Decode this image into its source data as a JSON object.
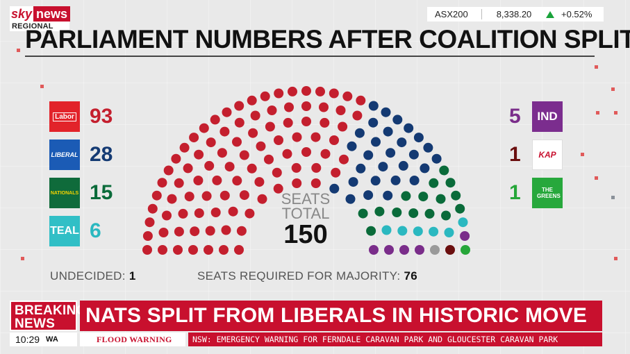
{
  "brand": {
    "sky": "sky",
    "news": "news",
    "region": "REGIONAL"
  },
  "market": {
    "name": "ASX200",
    "value": "8,338.20",
    "change": "+0.52%",
    "direction": "up",
    "up_color": "#1aa33b"
  },
  "title": "PARLIAMENT NUMBERS AFTER COALITION SPLIT",
  "parties_left": [
    {
      "logo_text": "Labor",
      "count": "93",
      "color": "#c41f2e",
      "logo_bg": "#e2232a"
    },
    {
      "logo_text": "LIBERAL",
      "count": "28",
      "color": "#143a73",
      "logo_bg": "#1b5bb5"
    },
    {
      "logo_text": "NATIONALS",
      "count": "15",
      "color": "#0a6b3a",
      "logo_bg": "#0f6b3b"
    },
    {
      "logo_text": "TEAL",
      "count": "6",
      "color": "#2bb8c0",
      "logo_bg": "#31bfc6"
    }
  ],
  "parties_right": [
    {
      "logo_text": "IND",
      "count": "5",
      "color": "#7a2d8a",
      "logo_bg": "#7b2d8e"
    },
    {
      "logo_text": "KAP",
      "count": "1",
      "color": "#6b0f0f",
      "logo_bg": "#ffffff"
    },
    {
      "logo_text": "THE GREENS",
      "count": "1",
      "color": "#26a639",
      "logo_bg": "#27a83c"
    }
  ],
  "seats_total": {
    "label1": "SEATS",
    "label2": "TOTAL",
    "value": "150"
  },
  "undecided": {
    "label": "UNDECIDED:",
    "value": "1"
  },
  "majority": {
    "label": "SEATS REQUIRED FOR MAJORITY:",
    "value": "76"
  },
  "breaking": {
    "line1": "BREAKING",
    "line2": "NEWS"
  },
  "headline": "NATS SPLIT FROM LIBERALS IN HISTORIC MOVE",
  "clock": {
    "time": "10:29",
    "region": "WA"
  },
  "ticker": {
    "label": "FLOOD WARNING",
    "text": "NSW: EMERGENCY WARNING FOR FERNDALE CARAVAN PARK AND GLOUCESTER CARAVAN PARK"
  },
  "hemicycle": {
    "seats": [
      {
        "party": "Labor",
        "count": 93,
        "color": "#c41f2e"
      },
      {
        "party": "Liberal",
        "count": 28,
        "color": "#143a73"
      },
      {
        "party": "Nationals",
        "count": 15,
        "color": "#0a6b3a"
      },
      {
        "party": "Teal",
        "count": 6,
        "color": "#2bb8c0"
      },
      {
        "party": "Independent",
        "count": 5,
        "color": "#7a2d8a"
      },
      {
        "party": "Undecided",
        "count": 1,
        "color": "#9a9a9a"
      },
      {
        "party": "KAP",
        "count": 1,
        "color": "#6b0f0f"
      },
      {
        "party": "Greens",
        "count": 1,
        "color": "#26a639"
      }
    ]
  }
}
